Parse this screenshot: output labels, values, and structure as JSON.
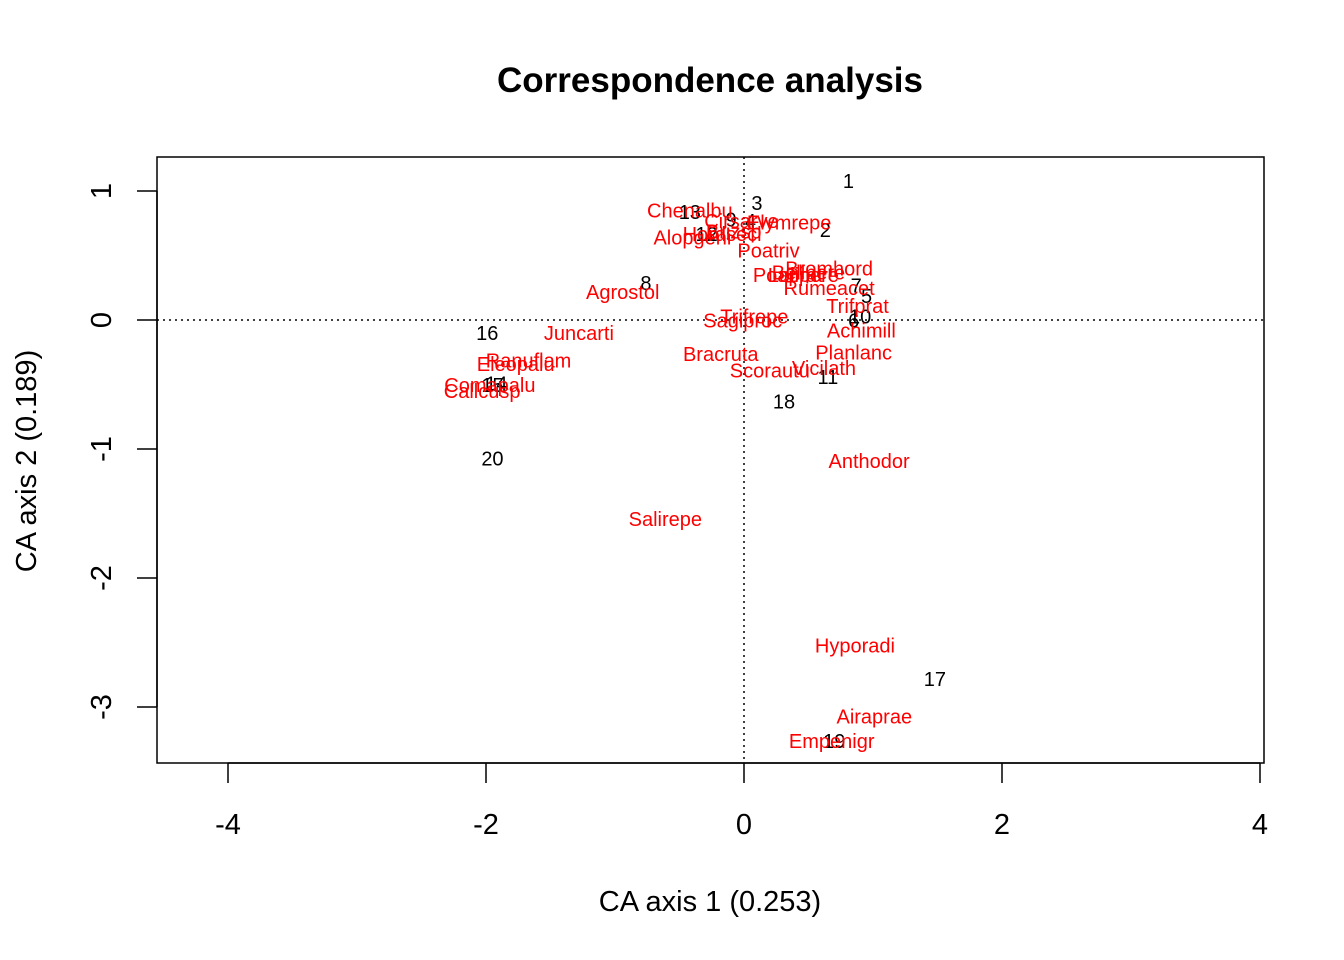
{
  "chart_data": {
    "type": "scatter",
    "title": "Correspondence analysis",
    "xlabel": "CA axis 1 (0.253)",
    "ylabel": "CA axis 2 (0.189)",
    "xlim": [
      -4.6,
      4.0
    ],
    "ylim": [
      -3.45,
      1.25
    ],
    "x_ticks": [
      -4,
      -2,
      0,
      2,
      4
    ],
    "y_ticks": [
      -3,
      -2,
      -1,
      0,
      1
    ],
    "reference_lines": {
      "x": 0,
      "y": 0,
      "style": "dotted"
    },
    "grid": false,
    "legend": "none",
    "series": [
      {
        "color": "#000000",
        "points": [
          {
            "label": "1",
            "x": 0.81,
            "y": 1.07
          },
          {
            "label": "2",
            "x": 0.63,
            "y": 0.69
          },
          {
            "label": "3",
            "x": 0.1,
            "y": 0.9
          },
          {
            "label": "4",
            "x": 0.05,
            "y": 0.76
          },
          {
            "label": "5",
            "x": 0.95,
            "y": 0.18
          },
          {
            "label": "6",
            "x": 0.85,
            "y": -0.01
          },
          {
            "label": "7",
            "x": 0.87,
            "y": 0.26
          },
          {
            "label": "8",
            "x": -0.76,
            "y": 0.28
          },
          {
            "label": "9",
            "x": -0.1,
            "y": 0.77
          },
          {
            "label": "10",
            "x": 0.9,
            "y": 0.02
          },
          {
            "label": "11",
            "x": 0.65,
            "y": -0.45
          },
          {
            "label": "12",
            "x": -0.29,
            "y": 0.66
          },
          {
            "label": "13",
            "x": -0.42,
            "y": 0.83
          },
          {
            "label": "14",
            "x": -1.92,
            "y": -0.5
          },
          {
            "label": "15",
            "x": -1.95,
            "y": -0.51
          },
          {
            "label": "16",
            "x": -1.99,
            "y": -0.11
          },
          {
            "label": "17",
            "x": 1.48,
            "y": -2.79
          },
          {
            "label": "18",
            "x": 0.31,
            "y": -0.64
          },
          {
            "label": "19",
            "x": 0.7,
            "y": -3.27
          },
          {
            "label": "20",
            "x": -1.95,
            "y": -1.08
          }
        ]
      },
      {
        "color": "#ff0000",
        "points": [
          {
            "label": "Chenalbu",
            "x": -0.42,
            "y": 0.84
          },
          {
            "label": "Cirsarve",
            "x": -0.02,
            "y": 0.76
          },
          {
            "label": "Elymrepe",
            "x": 0.35,
            "y": 0.75
          },
          {
            "label": "Alopgeni",
            "x": -0.4,
            "y": 0.63
          },
          {
            "label": "Hordsecl",
            "x": -0.17,
            "y": 0.66
          },
          {
            "label": "Brizsp",
            "x": -0.08,
            "y": 0.68
          },
          {
            "label": "Poatriv",
            "x": 0.19,
            "y": 0.53
          },
          {
            "label": "Bromhord",
            "x": 0.66,
            "y": 0.39
          },
          {
            "label": "Bellpere",
            "x": 0.5,
            "y": 0.36
          },
          {
            "label": "Lolipere",
            "x": 0.46,
            "y": 0.34
          },
          {
            "label": "Poaprat",
            "x": 0.34,
            "y": 0.34
          },
          {
            "label": "Rumeacet",
            "x": 0.66,
            "y": 0.24
          },
          {
            "label": "Agrostol",
            "x": -0.94,
            "y": 0.21
          },
          {
            "label": "Trifprat",
            "x": 0.88,
            "y": 0.1
          },
          {
            "label": "Trifrepe",
            "x": 0.08,
            "y": 0.02
          },
          {
            "label": "Sagiproc",
            "x": -0.01,
            "y": -0.01
          },
          {
            "label": "Juncarti",
            "x": -1.28,
            "y": -0.11
          },
          {
            "label": "Achimill",
            "x": 0.91,
            "y": -0.09
          },
          {
            "label": "Planlanc",
            "x": 0.85,
            "y": -0.26
          },
          {
            "label": "Bracruta",
            "x": -0.18,
            "y": -0.27
          },
          {
            "label": "Ranuflam",
            "x": -1.67,
            "y": -0.32
          },
          {
            "label": "Eleopalu",
            "x": -1.77,
            "y": -0.35
          },
          {
            "label": "Vicilath",
            "x": 0.62,
            "y": -0.38
          },
          {
            "label": "Scorautu",
            "x": 0.2,
            "y": -0.4
          },
          {
            "label": "Comapalu",
            "x": -1.97,
            "y": -0.51
          },
          {
            "label": "Callcusp",
            "x": -2.03,
            "y": -0.56
          },
          {
            "label": "Anthodor",
            "x": 0.97,
            "y": -1.1
          },
          {
            "label": "Salirepe",
            "x": -0.61,
            "y": -1.55
          },
          {
            "label": "Hyporadi",
            "x": 0.86,
            "y": -2.53
          },
          {
            "label": "Airaprae",
            "x": 1.01,
            "y": -3.08
          },
          {
            "label": "Empenigr",
            "x": 0.68,
            "y": -3.27
          }
        ]
      }
    ]
  }
}
